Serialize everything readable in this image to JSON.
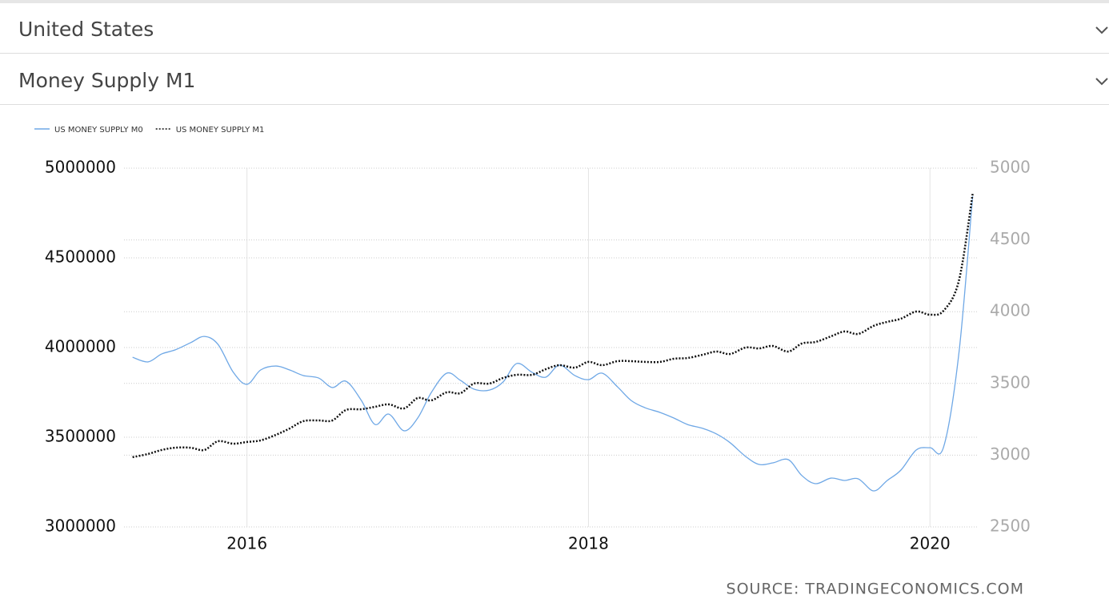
{
  "dropdowns": [
    "United States",
    "Money Supply M1"
  ],
  "source": "SOURCE: TRADINGECONOMICS.COM",
  "chart_data": {
    "type": "line",
    "x": [
      2015.33,
      2015.42,
      2015.5,
      2015.58,
      2015.67,
      2015.75,
      2015.83,
      2015.92,
      2016,
      2016.08,
      2016.17,
      2016.25,
      2016.33,
      2016.42,
      2016.5,
      2016.58,
      2016.67,
      2016.75,
      2016.83,
      2016.92,
      2017,
      2017.08,
      2017.17,
      2017.25,
      2017.33,
      2017.42,
      2017.5,
      2017.58,
      2017.67,
      2017.75,
      2017.83,
      2017.92,
      2018,
      2018.08,
      2018.17,
      2018.25,
      2018.33,
      2018.42,
      2018.5,
      2018.58,
      2018.67,
      2018.75,
      2018.83,
      2018.92,
      2019,
      2019.08,
      2019.17,
      2019.25,
      2019.33,
      2019.42,
      2019.5,
      2019.58,
      2019.67,
      2019.75,
      2019.83,
      2019.92,
      2020,
      2020.08,
      2020.17,
      2020.25
    ],
    "series": [
      {
        "name": "US MONEY SUPPLY M0",
        "color": "#6fa8e6",
        "style": "solid",
        "values": [
          3946000,
          3920000,
          3964000,
          3987000,
          4027000,
          4062000,
          4018000,
          3862000,
          3795000,
          3875000,
          3897000,
          3875000,
          3844000,
          3830000,
          3777000,
          3812000,
          3705000,
          3571000,
          3629000,
          3536000,
          3607000,
          3750000,
          3857000,
          3817000,
          3768000,
          3763000,
          3808000,
          3911000,
          3862000,
          3835000,
          3902000,
          3844000,
          3821000,
          3857000,
          3781000,
          3705000,
          3665000,
          3638000,
          3607000,
          3571000,
          3549000,
          3518000,
          3469000,
          3393000,
          3348000,
          3357000,
          3375000,
          3286000,
          3241000,
          3272000,
          3259000,
          3268000,
          3201000,
          3259000,
          3317000,
          3429000,
          3442000,
          3446000,
          3973000,
          4844000
        ]
      },
      {
        "name": "US MONEY SUPPLY M1",
        "color": "#111111",
        "style": "dotted",
        "axis": "y2",
        "values": [
          2986,
          3008,
          3036,
          3052,
          3052,
          3036,
          3097,
          3080,
          3092,
          3103,
          3142,
          3186,
          3237,
          3242,
          3242,
          3315,
          3320,
          3337,
          3354,
          3326,
          3398,
          3382,
          3438,
          3432,
          3499,
          3499,
          3538,
          3560,
          3560,
          3599,
          3627,
          3610,
          3650,
          3627,
          3655,
          3655,
          3650,
          3650,
          3672,
          3677,
          3700,
          3722,
          3705,
          3750,
          3744,
          3761,
          3722,
          3778,
          3789,
          3828,
          3862,
          3845,
          3901,
          3929,
          3951,
          4001,
          3979,
          4007,
          4219,
          4821
        ]
      }
    ],
    "xlim": [
      2015.28,
      2020.28
    ],
    "xticks": [
      2016,
      2018,
      2020
    ],
    "ylim": [
      3000000,
      5000000
    ],
    "yticks": [
      3000000,
      3500000,
      4000000,
      4500000,
      5000000
    ],
    "y2lim": [
      2500,
      5000
    ],
    "y2ticks": [
      2500,
      3000,
      3500,
      4000,
      4500,
      5000
    ],
    "grid": true,
    "legend": "top-left"
  }
}
